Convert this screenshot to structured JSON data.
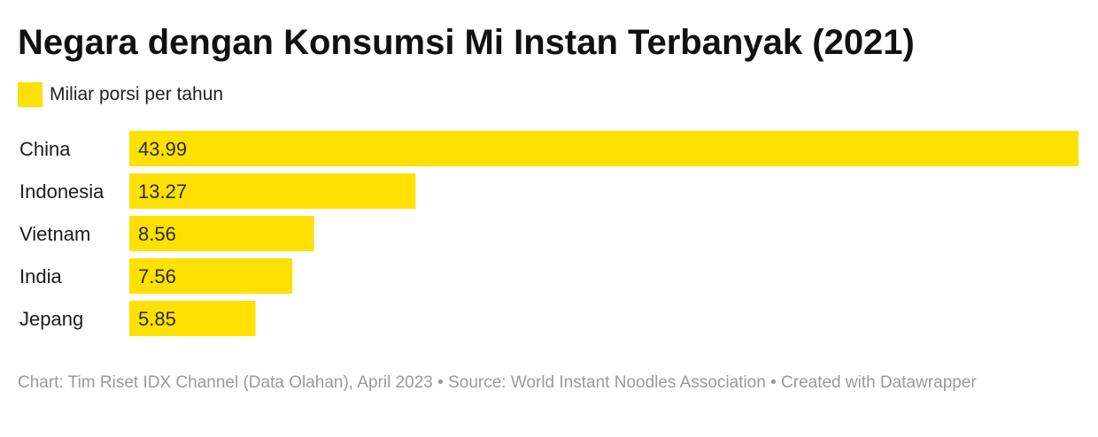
{
  "chart_data": {
    "type": "bar",
    "orientation": "horizontal",
    "title": "Negara dengan Konsumsi Mi Instan Terbanyak (2021)",
    "categories": [
      "China",
      "Indonesia",
      "Vietnam",
      "India",
      "Jepang"
    ],
    "series": [
      {
        "name": "Miliar porsi per tahun",
        "values": [
          43.99,
          13.27,
          8.56,
          7.56,
          5.85
        ],
        "color": "#ffe100"
      }
    ],
    "value_labels": [
      "43.99",
      "13.27",
      "8.56",
      "7.56",
      "5.85"
    ],
    "xlim": [
      0,
      43.99
    ],
    "grid": false,
    "legend_position": "top-left"
  },
  "footer": {
    "text": "Chart: Tim Riset IDX Channel (Data Olahan), April 2023 • Source: World Instant Noodles Association • Created with Datawrapper"
  }
}
